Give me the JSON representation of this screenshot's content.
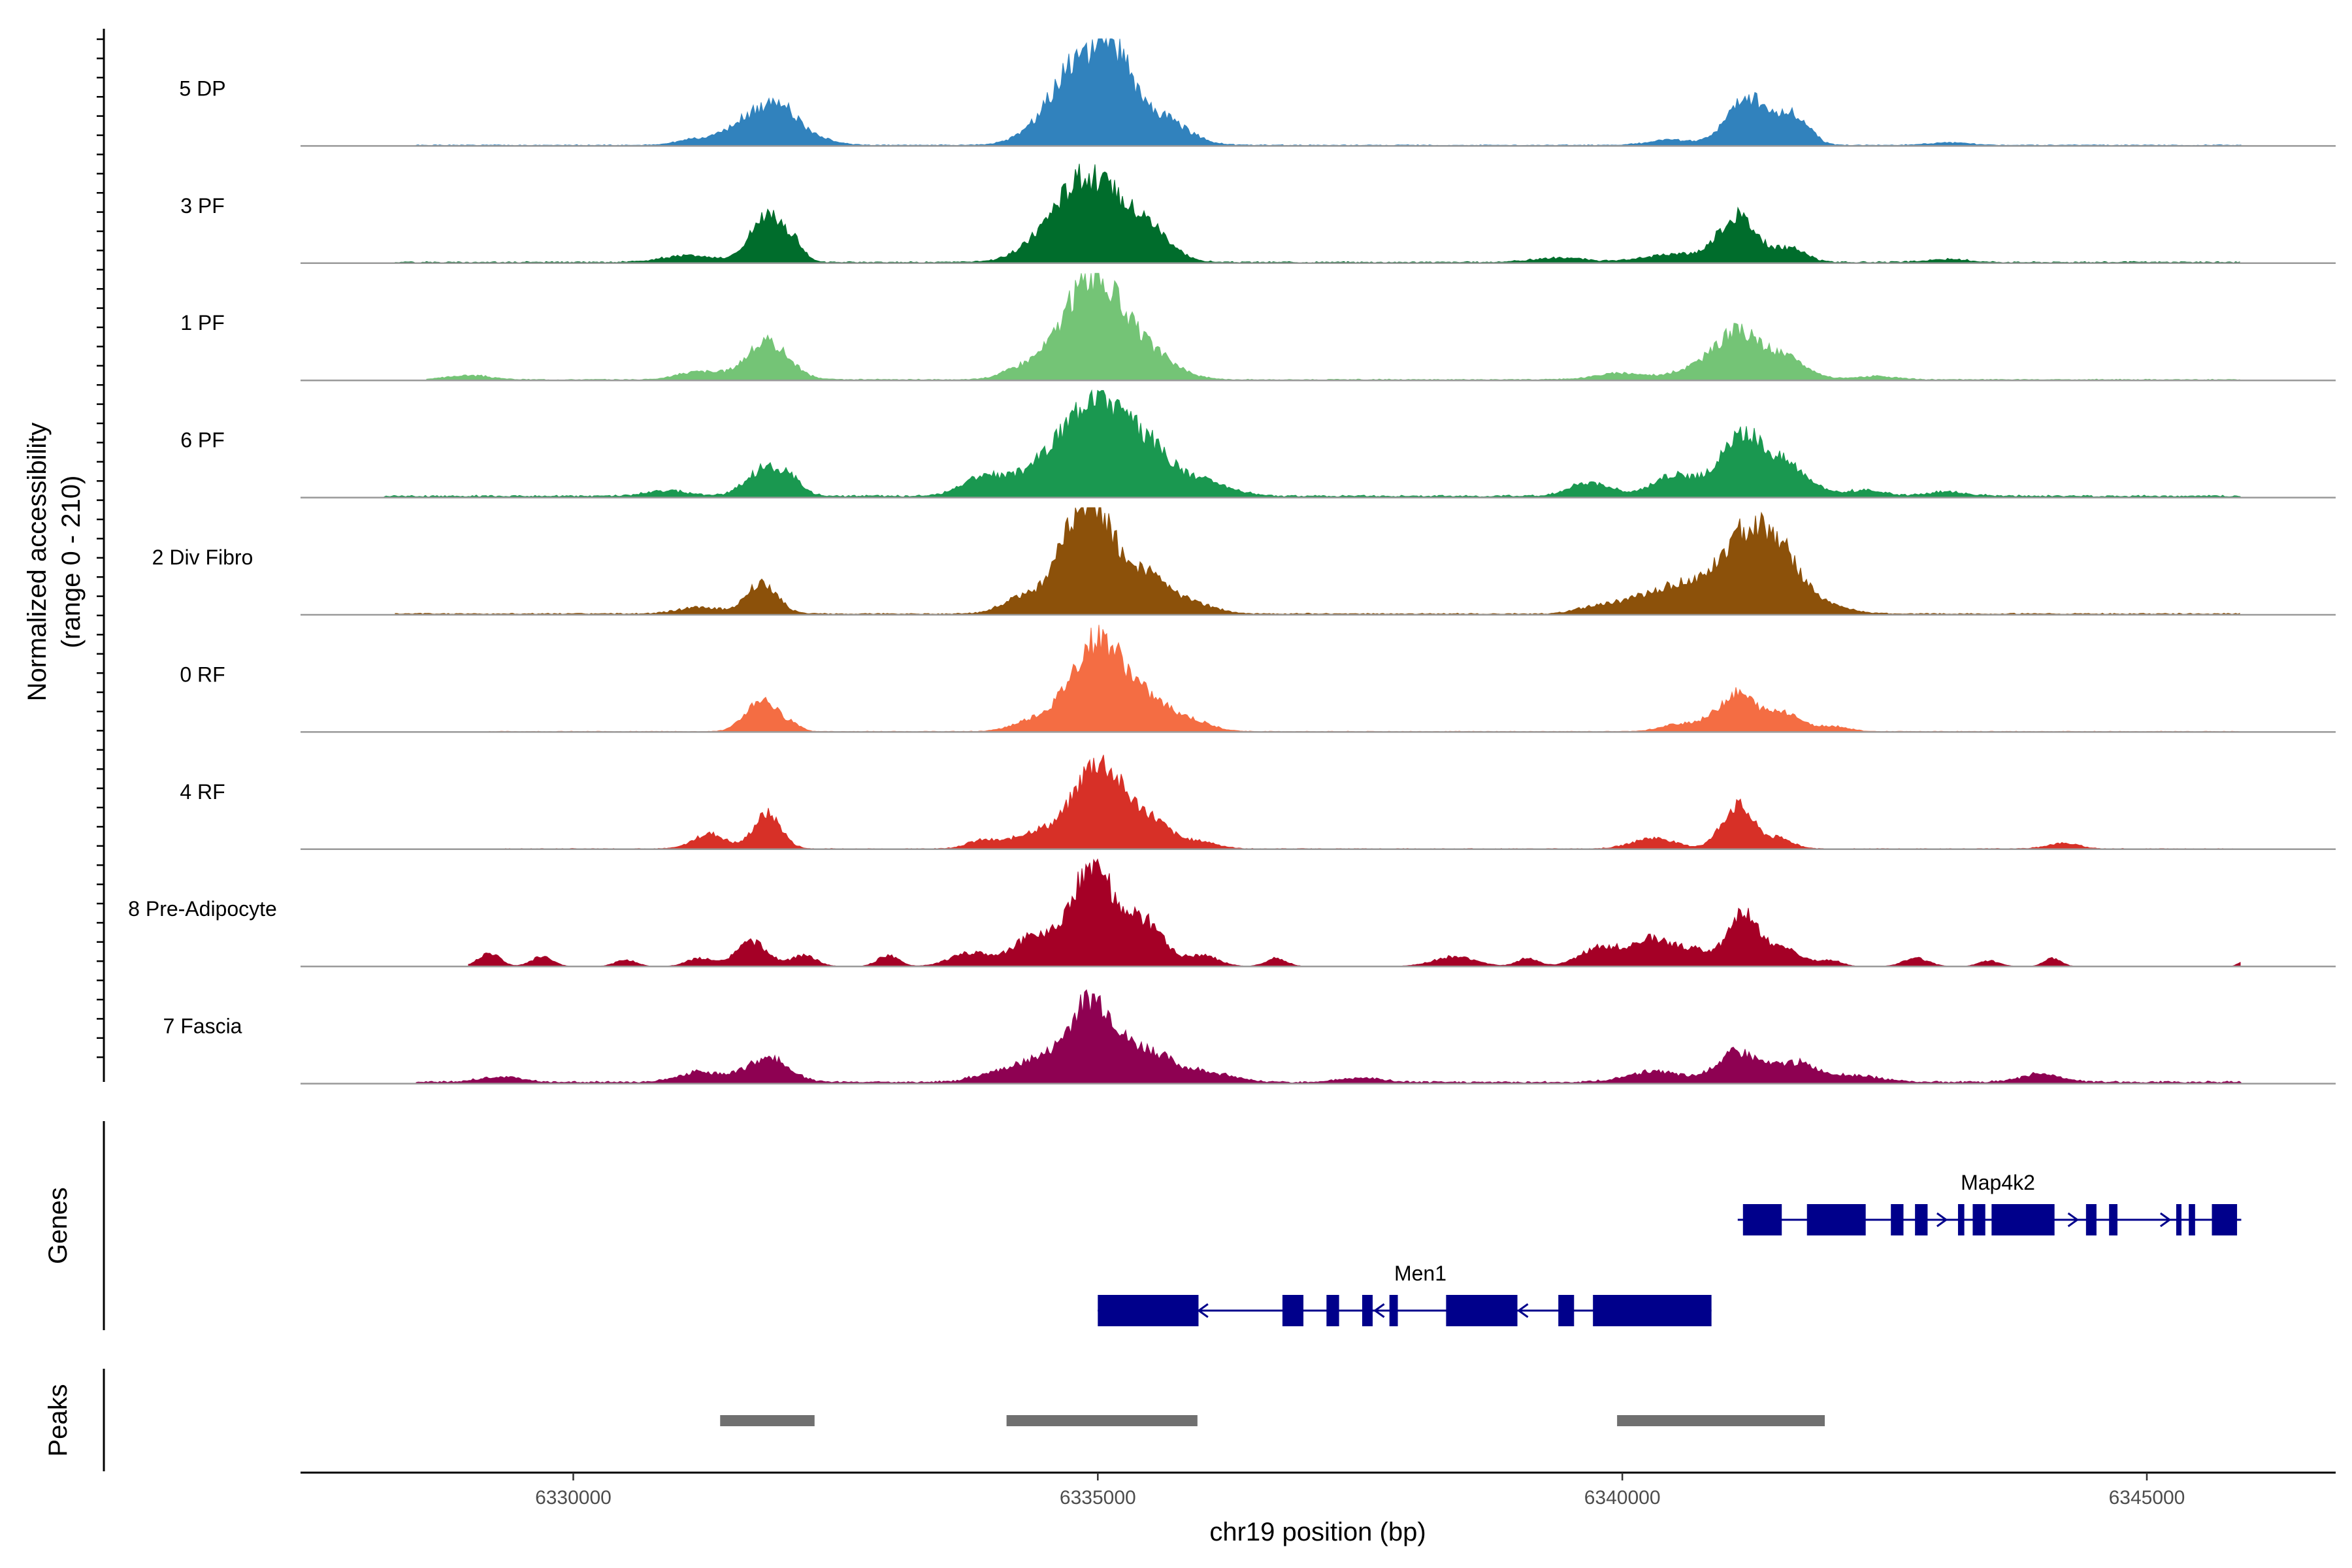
{
  "chart_data": {
    "type": "area",
    "title": "",
    "ylabel_line1": "Normalized accessibility",
    "ylabel_line2": "(range 0 - 210)",
    "yrange": [
      0,
      210
    ],
    "xlabel": "chr19 position (bp)",
    "xlim": [
      6327400,
      6346800
    ],
    "xticks": [
      6330000,
      6335000,
      6340000,
      6345000
    ],
    "xtick_labels": [
      "6330000",
      "6335000",
      "6340000",
      "6345000"
    ],
    "series": [
      {
        "name": "5 DP",
        "color": "#3182bd",
        "bg": 1.5,
        "start": 6328500,
        "end": 6345900,
        "peaks": [
          [
            6331100,
            150,
            8
          ],
          [
            6331850,
            300,
            70
          ],
          [
            6332000,
            80,
            20
          ],
          [
            6334900,
            320,
            170
          ],
          [
            6335600,
            250,
            45
          ],
          [
            6335200,
            120,
            60
          ],
          [
            6340450,
            200,
            10
          ],
          [
            6341200,
            200,
            90
          ],
          [
            6341650,
            140,
            50
          ],
          [
            6343100,
            200,
            5
          ]
        ]
      },
      {
        "name": "3 PF",
        "color": "#006d2c",
        "bg": 2,
        "start": 6328300,
        "end": 6345900,
        "peaks": [
          [
            6331100,
            250,
            12
          ],
          [
            6331850,
            160,
            85
          ],
          [
            6332100,
            100,
            25
          ],
          [
            6334900,
            340,
            160
          ],
          [
            6335500,
            200,
            45
          ],
          [
            6339400,
            250,
            8
          ],
          [
            6340500,
            280,
            15
          ],
          [
            6341100,
            180,
            85
          ],
          [
            6341600,
            150,
            25
          ],
          [
            6343100,
            200,
            5
          ]
        ]
      },
      {
        "name": "1 PF",
        "color": "#74c476",
        "bg": 1.5,
        "start": 6328600,
        "end": 6345900,
        "peaks": [
          [
            6329000,
            200,
            8
          ],
          [
            6331200,
            200,
            15
          ],
          [
            6331850,
            200,
            70
          ],
          [
            6334300,
            200,
            20
          ],
          [
            6334950,
            280,
            190
          ],
          [
            6335500,
            250,
            40
          ],
          [
            6340000,
            250,
            12
          ],
          [
            6340700,
            200,
            20
          ],
          [
            6341100,
            200,
            85
          ],
          [
            6341550,
            200,
            40
          ],
          [
            6342400,
            200,
            6
          ]
        ]
      },
      {
        "name": "6 PF",
        "color": "#1a9850",
        "bg": 3,
        "start": 6328200,
        "end": 6345900,
        "peaks": [
          [
            6330900,
            200,
            10
          ],
          [
            6331850,
            180,
            55
          ],
          [
            6332100,
            100,
            15
          ],
          [
            6333900,
            200,
            35
          ],
          [
            6334500,
            250,
            60
          ],
          [
            6335000,
            250,
            190
          ],
          [
            6335500,
            200,
            80
          ],
          [
            6336000,
            250,
            30
          ],
          [
            6339700,
            200,
            25
          ],
          [
            6340500,
            200,
            40
          ],
          [
            6341150,
            220,
            110
          ],
          [
            6341600,
            200,
            50
          ],
          [
            6342300,
            200,
            10
          ],
          [
            6343100,
            200,
            8
          ]
        ]
      },
      {
        "name": "2 Div Fibro",
        "color": "#8c510a",
        "bg": 2,
        "start": 6328300,
        "end": 6345900,
        "peaks": [
          [
            6331200,
            200,
            12
          ],
          [
            6331800,
            150,
            55
          ],
          [
            6334300,
            200,
            30
          ],
          [
            6334900,
            230,
            220
          ],
          [
            6335450,
            200,
            70
          ],
          [
            6335900,
            200,
            20
          ],
          [
            6339800,
            200,
            15
          ],
          [
            6340300,
            250,
            30
          ],
          [
            6340700,
            250,
            45
          ],
          [
            6341200,
            230,
            140
          ],
          [
            6341550,
            200,
            80
          ],
          [
            6342000,
            200,
            12
          ]
        ]
      },
      {
        "name": "0 RF",
        "color": "#f46d43",
        "bg": 1,
        "start": 6329200,
        "end": 6345900,
        "peaks": [
          [
            6331800,
            150,
            60
          ],
          [
            6332100,
            80,
            10
          ],
          [
            6334400,
            200,
            20
          ],
          [
            6335000,
            250,
            170
          ],
          [
            6335500,
            230,
            45
          ],
          [
            6335900,
            200,
            15
          ],
          [
            6340600,
            200,
            15
          ],
          [
            6341100,
            180,
            70
          ],
          [
            6341550,
            150,
            35
          ],
          [
            6342000,
            150,
            10
          ]
        ]
      },
      {
        "name": "4 RF",
        "color": "#d73027",
        "bg": 1,
        "start": 6329300,
        "end": 6345900,
        "peaks": [
          [
            6331300,
            150,
            28
          ],
          [
            6331850,
            130,
            65
          ],
          [
            6333900,
            150,
            15
          ],
          [
            6334400,
            200,
            30
          ],
          [
            6335000,
            230,
            160
          ],
          [
            6335500,
            200,
            50
          ],
          [
            6336000,
            150,
            12
          ],
          [
            6340300,
            200,
            20
          ],
          [
            6341100,
            150,
            80
          ],
          [
            6341500,
            130,
            18
          ],
          [
            6344200,
            150,
            10
          ]
        ]
      },
      {
        "name": "8 Pre-Adipocyte",
        "color": "#a50026",
        "bg": 0,
        "start": 6329000,
        "end": 6345900,
        "peaks": [
          [
            6329200,
            100,
            25
          ],
          [
            6329700,
            100,
            18
          ],
          [
            6330500,
            100,
            12
          ],
          [
            6331200,
            120,
            15
          ],
          [
            6331700,
            150,
            45
          ],
          [
            6332200,
            120,
            20
          ],
          [
            6333000,
            100,
            20
          ],
          [
            6333800,
            200,
            25
          ],
          [
            6334400,
            200,
            55
          ],
          [
            6334950,
            200,
            190
          ],
          [
            6335450,
            180,
            80
          ],
          [
            6336000,
            150,
            20
          ],
          [
            6336700,
            100,
            15
          ],
          [
            6338400,
            200,
            18
          ],
          [
            6339100,
            100,
            15
          ],
          [
            6339800,
            200,
            35
          ],
          [
            6340300,
            200,
            50
          ],
          [
            6340700,
            150,
            25
          ],
          [
            6341150,
            150,
            95
          ],
          [
            6341550,
            180,
            30
          ],
          [
            6342000,
            100,
            10
          ],
          [
            6342800,
            120,
            15
          ],
          [
            6343500,
            100,
            10
          ],
          [
            6344100,
            80,
            15
          ],
          [
            6345900,
            40,
            8
          ]
        ]
      },
      {
        "name": "7 Fascia",
        "color": "#8e0152",
        "bg": 3,
        "start": 6328500,
        "end": 6345900,
        "peaks": [
          [
            6329300,
            200,
            10
          ],
          [
            6331200,
            200,
            18
          ],
          [
            6331850,
            200,
            45
          ],
          [
            6334000,
            200,
            15
          ],
          [
            6334400,
            200,
            35
          ],
          [
            6334950,
            230,
            155
          ],
          [
            6335500,
            200,
            50
          ],
          [
            6336000,
            250,
            20
          ],
          [
            6337500,
            200,
            8
          ],
          [
            6340300,
            250,
            20
          ],
          [
            6341100,
            200,
            55
          ],
          [
            6341650,
            200,
            35
          ],
          [
            6342200,
            250,
            12
          ],
          [
            6344000,
            200,
            15
          ]
        ]
      }
    ],
    "genes": [
      {
        "name": "Map4k2",
        "start": 6341100,
        "end": 6345900,
        "strand": "+",
        "exons": [
          [
            6341150,
            6341520
          ],
          [
            6341760,
            6342320
          ],
          [
            6342560,
            6342680
          ],
          [
            6342790,
            6342910
          ],
          [
            6343200,
            6343260
          ],
          [
            6343340,
            6343460
          ],
          [
            6343520,
            6344120
          ],
          [
            6344420,
            6344520
          ],
          [
            6344640,
            6344720
          ],
          [
            6345280,
            6345330
          ],
          [
            6345400,
            6345460
          ],
          [
            6345620,
            6345860
          ]
        ],
        "arrows": [
          6341240,
          6343050,
          6344300,
          6345180,
          6345780
        ]
      },
      {
        "name": "Men1",
        "start": 6335000,
        "end": 6340850,
        "strand": "-",
        "exons": [
          [
            6335000,
            6335960
          ],
          [
            6336760,
            6336960
          ],
          [
            6337180,
            6337300
          ],
          [
            6337520,
            6337620
          ],
          [
            6337780,
            6337860
          ],
          [
            6338320,
            6339000
          ],
          [
            6339390,
            6339540
          ],
          [
            6339720,
            6340850
          ]
        ],
        "arrows": [
          6335050,
          6336000,
          6337680,
          6339050
        ]
      }
    ],
    "genes_label": "Genes",
    "peaks_label": "Peaks",
    "peaks": [
      [
        6331400,
        6332300
      ],
      [
        6334130,
        6335950
      ],
      [
        6339950,
        6341930
      ]
    ]
  }
}
